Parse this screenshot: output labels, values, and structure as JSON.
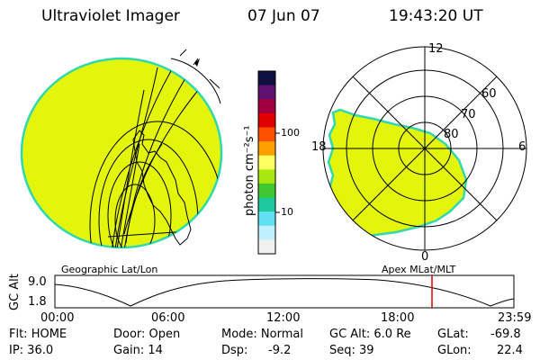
{
  "header": {
    "instrument": "Ultraviolet Imager",
    "date": "07 Jun 07",
    "time": "19:43:20 UT"
  },
  "colors": {
    "auroral_fill": "#e2f50a",
    "auroral_edge": "#30d8b0",
    "marker": "#e00000"
  },
  "geo_panel": {
    "label": "Geographic Lat/Lon"
  },
  "polar_panel": {
    "label": "Apex MLat/MLT",
    "mlt_labels": [
      "12",
      "18",
      "6",
      "0"
    ],
    "lat_labels": [
      "60",
      "70",
      "80"
    ]
  },
  "colorbar": {
    "unit_label": "photon cm⁻²s⁻¹",
    "tick_labels": [
      "100",
      "10"
    ],
    "colors": [
      "#101040",
      "#601070",
      "#a00040",
      "#e00000",
      "#ff5000",
      "#ffa000",
      "#ffff60",
      "#a8e810",
      "#40c830",
      "#20c8a0",
      "#60e0f0",
      "#c0f0ff",
      "#f0f0f0"
    ]
  },
  "orbit_plot": {
    "ylabel": "GC Alt",
    "y_ticks": [
      "9.0",
      "1.8"
    ],
    "x_ticks": [
      "00:00",
      "06:00",
      "12:00",
      "18:00",
      "23:59"
    ],
    "marker_time": "19:43"
  },
  "info": {
    "row1": {
      "flt": "Flt: HOME",
      "door": "Door: Open",
      "mode": "Mode: Normal",
      "gcalt": "GC Alt: 6.0 Re",
      "glat_label": "GLat:",
      "glat_value": "-69.8"
    },
    "row2": {
      "ip": "IP: 36.0",
      "gain": "Gain: 14",
      "dsp_label": "Dsp:",
      "dsp_value": "-9.2",
      "seq": "Seq: 39",
      "glon_label": "GLon:",
      "glon_value": "22.4"
    }
  }
}
